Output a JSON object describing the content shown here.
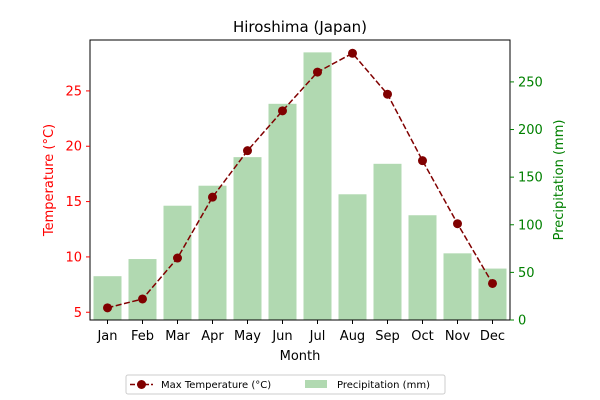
{
  "chart_data": {
    "type": "bar+line",
    "title": "Hiroshima (Japan)",
    "xlabel": "Month",
    "categories": [
      "Jan",
      "Feb",
      "Mar",
      "Apr",
      "May",
      "Jun",
      "Jul",
      "Aug",
      "Sep",
      "Oct",
      "Nov",
      "Dec"
    ],
    "left_axis": {
      "label": "Temperature (°C)",
      "color": "#ff0000",
      "ylim": [
        4.3,
        29.6
      ],
      "ticks": [
        5,
        10,
        15,
        20,
        25
      ]
    },
    "right_axis": {
      "label": "Precipitation (mm)",
      "color": "#008000",
      "ylim": [
        0,
        294
      ],
      "ticks": [
        0,
        50,
        100,
        150,
        200,
        250
      ]
    },
    "series": [
      {
        "name": "Max Temperature (°C)",
        "kind": "line",
        "axis": "left",
        "color": "#800000",
        "values": [
          5.4,
          6.2,
          9.9,
          15.4,
          19.6,
          23.2,
          26.7,
          28.4,
          24.7,
          18.7,
          13.0,
          7.6
        ]
      },
      {
        "name": "Precipitation (mm)",
        "kind": "bar",
        "axis": "right",
        "color": "#b1d9b1",
        "values": [
          46,
          64,
          120,
          141,
          171,
          227,
          281,
          132,
          164,
          110,
          70,
          54
        ]
      }
    ],
    "legend": "bottom-center",
    "grid": false
  }
}
